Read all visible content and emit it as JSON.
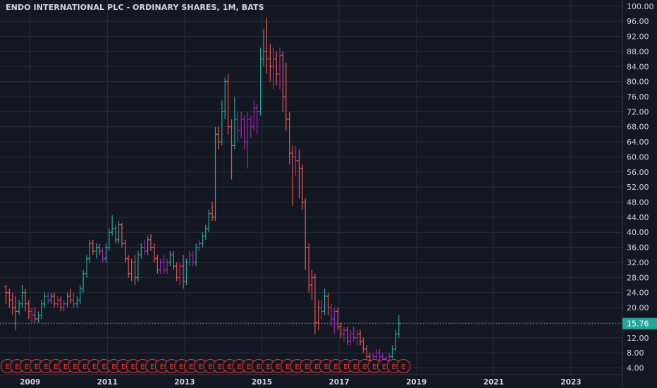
{
  "chart_data": {
    "type": "bar",
    "style": "ohlc",
    "title": "ENDO INTERNATIONAL PLC - ORDINARY SHARES, 1M, BATS",
    "xlabel": "",
    "ylabel": "",
    "y_ticks": [
      "100.00",
      "96.00",
      "92.00",
      "88.00",
      "84.00",
      "80.00",
      "76.00",
      "72.00",
      "68.00",
      "64.00",
      "60.00",
      "56.00",
      "52.00",
      "48.00",
      "44.00",
      "40.00",
      "36.00",
      "32.00",
      "28.00",
      "24.00",
      "20.00",
      "16.00",
      "12.00",
      "8.00",
      "4.00"
    ],
    "x_ticks": [
      "2009",
      "2011",
      "2013",
      "2015",
      "2017",
      "2019",
      "2021",
      "2023"
    ],
    "ylim": [
      2,
      101
    ],
    "xlim": [
      2008.5,
      2024.5
    ],
    "last_price": "15.76",
    "last_price_value": 15.76,
    "earnings_marker": "E",
    "grid": true,
    "colors": {
      "background": "#131722",
      "grid": "#2a2e39",
      "axis_text": "#d1d4dc",
      "up": "#26a69a",
      "down": "#ef5350",
      "purple": "#9c27b0",
      "price_line": "#26a69a",
      "earnings": "#e53935"
    },
    "bars": [
      {
        "t": 2008.54,
        "o": 25.5,
        "h": 26,
        "l": 21,
        "c": 24,
        "k": "d"
      },
      {
        "t": 2008.63,
        "o": 24,
        "h": 25,
        "l": 20,
        "c": 22,
        "k": "d"
      },
      {
        "t": 2008.71,
        "o": 22,
        "h": 24,
        "l": 18,
        "c": 20,
        "k": "d"
      },
      {
        "t": 2008.79,
        "o": 20,
        "h": 23,
        "l": 14,
        "c": 19,
        "k": "d"
      },
      {
        "t": 2008.88,
        "o": 19,
        "h": 22,
        "l": 18,
        "c": 21,
        "k": "u"
      },
      {
        "t": 2008.96,
        "o": 21,
        "h": 26,
        "l": 20,
        "c": 24,
        "k": "u"
      },
      {
        "t": 2009.04,
        "o": 24,
        "h": 25,
        "l": 19,
        "c": 21,
        "k": "d"
      },
      {
        "t": 2009.13,
        "o": 21,
        "h": 22,
        "l": 17,
        "c": 19,
        "k": "d"
      },
      {
        "t": 2009.21,
        "o": 19,
        "h": 20,
        "l": 16,
        "c": 18,
        "k": "p"
      },
      {
        "t": 2009.29,
        "o": 18,
        "h": 20,
        "l": 16,
        "c": 17,
        "k": "d"
      },
      {
        "t": 2009.38,
        "o": 17,
        "h": 19,
        "l": 16,
        "c": 18,
        "k": "u"
      },
      {
        "t": 2009.46,
        "o": 18,
        "h": 22,
        "l": 17,
        "c": 21,
        "k": "u"
      },
      {
        "t": 2009.54,
        "o": 21,
        "h": 24,
        "l": 20,
        "c": 23,
        "k": "u"
      },
      {
        "t": 2009.63,
        "o": 23,
        "h": 24,
        "l": 21,
        "c": 22,
        "k": "p"
      },
      {
        "t": 2009.71,
        "o": 22,
        "h": 24,
        "l": 21,
        "c": 23,
        "k": "u"
      },
      {
        "t": 2009.79,
        "o": 23,
        "h": 24,
        "l": 20,
        "c": 21,
        "k": "d"
      },
      {
        "t": 2009.88,
        "o": 21,
        "h": 23,
        "l": 20,
        "c": 22,
        "k": "p"
      },
      {
        "t": 2009.96,
        "o": 22,
        "h": 23,
        "l": 19,
        "c": 20,
        "k": "d"
      },
      {
        "t": 2010.04,
        "o": 20,
        "h": 22,
        "l": 19,
        "c": 21,
        "k": "p"
      },
      {
        "t": 2010.13,
        "o": 21,
        "h": 24,
        "l": 20,
        "c": 23,
        "k": "u"
      },
      {
        "t": 2010.21,
        "o": 23,
        "h": 25,
        "l": 21,
        "c": 22,
        "k": "d"
      },
      {
        "t": 2010.29,
        "o": 22,
        "h": 24,
        "l": 20,
        "c": 21,
        "k": "p"
      },
      {
        "t": 2010.38,
        "o": 21,
        "h": 23,
        "l": 20,
        "c": 22,
        "k": "u"
      },
      {
        "t": 2010.46,
        "o": 22,
        "h": 26,
        "l": 21,
        "c": 25,
        "k": "u"
      },
      {
        "t": 2010.54,
        "o": 25,
        "h": 30,
        "l": 24,
        "c": 29,
        "k": "u"
      },
      {
        "t": 2010.63,
        "o": 29,
        "h": 34,
        "l": 28,
        "c": 33,
        "k": "u"
      },
      {
        "t": 2010.71,
        "o": 33,
        "h": 38,
        "l": 32,
        "c": 37,
        "k": "u"
      },
      {
        "t": 2010.79,
        "o": 37,
        "h": 38,
        "l": 34,
        "c": 35,
        "k": "d"
      },
      {
        "t": 2010.88,
        "o": 35,
        "h": 37,
        "l": 33,
        "c": 36,
        "k": "u"
      },
      {
        "t": 2010.96,
        "o": 36,
        "h": 37,
        "l": 34,
        "c": 35,
        "k": "d"
      },
      {
        "t": 2011.04,
        "o": 35,
        "h": 36,
        "l": 32,
        "c": 33,
        "k": "p"
      },
      {
        "t": 2011.13,
        "o": 33,
        "h": 37,
        "l": 32,
        "c": 36,
        "k": "u"
      },
      {
        "t": 2011.21,
        "o": 36,
        "h": 41,
        "l": 35,
        "c": 40,
        "k": "u"
      },
      {
        "t": 2011.29,
        "o": 40,
        "h": 44.5,
        "l": 39,
        "c": 41,
        "k": "u"
      },
      {
        "t": 2011.38,
        "o": 41,
        "h": 42,
        "l": 37,
        "c": 38,
        "k": "d"
      },
      {
        "t": 2011.46,
        "o": 38,
        "h": 43,
        "l": 37,
        "c": 42,
        "k": "u"
      },
      {
        "t": 2011.54,
        "o": 42,
        "h": 42.5,
        "l": 36,
        "c": 37,
        "k": "d"
      },
      {
        "t": 2011.63,
        "o": 37,
        "h": 38,
        "l": 32,
        "c": 33,
        "k": "d"
      },
      {
        "t": 2011.71,
        "o": 33,
        "h": 34,
        "l": 28,
        "c": 29,
        "k": "d"
      },
      {
        "t": 2011.79,
        "o": 29,
        "h": 33,
        "l": 27,
        "c": 32,
        "k": "u"
      },
      {
        "t": 2011.88,
        "o": 32,
        "h": 34,
        "l": 26,
        "c": 28,
        "k": "d"
      },
      {
        "t": 2011.96,
        "o": 28,
        "h": 35,
        "l": 27,
        "c": 34,
        "k": "u"
      },
      {
        "t": 2012.04,
        "o": 34,
        "h": 37,
        "l": 33,
        "c": 36,
        "k": "u"
      },
      {
        "t": 2012.13,
        "o": 36,
        "h": 38,
        "l": 34,
        "c": 35,
        "k": "p"
      },
      {
        "t": 2012.21,
        "o": 35,
        "h": 39,
        "l": 34,
        "c": 38,
        "k": "u"
      },
      {
        "t": 2012.29,
        "o": 38,
        "h": 39.5,
        "l": 35,
        "c": 36,
        "k": "d"
      },
      {
        "t": 2012.38,
        "o": 36,
        "h": 37,
        "l": 32,
        "c": 33,
        "k": "d"
      },
      {
        "t": 2012.46,
        "o": 33,
        "h": 34,
        "l": 29,
        "c": 30,
        "k": "d"
      },
      {
        "t": 2012.54,
        "o": 30,
        "h": 33,
        "l": 29,
        "c": 32,
        "k": "p"
      },
      {
        "t": 2012.63,
        "o": 32,
        "h": 34,
        "l": 29,
        "c": 30,
        "k": "p"
      },
      {
        "t": 2012.71,
        "o": 30,
        "h": 33,
        "l": 29,
        "c": 32,
        "k": "p"
      },
      {
        "t": 2012.79,
        "o": 32,
        "h": 35,
        "l": 31,
        "c": 34,
        "k": "u"
      },
      {
        "t": 2012.88,
        "o": 34,
        "h": 35,
        "l": 30,
        "c": 31,
        "k": "d"
      },
      {
        "t": 2012.96,
        "o": 31,
        "h": 32,
        "l": 27,
        "c": 28,
        "k": "d"
      },
      {
        "t": 2013.04,
        "o": 28,
        "h": 32,
        "l": 26,
        "c": 31,
        "k": "p"
      },
      {
        "t": 2013.13,
        "o": 31,
        "h": 34,
        "l": 25,
        "c": 27,
        "k": "d"
      },
      {
        "t": 2013.21,
        "o": 27,
        "h": 33,
        "l": 26,
        "c": 32,
        "k": "u"
      },
      {
        "t": 2013.29,
        "o": 32,
        "h": 35,
        "l": 31,
        "c": 34,
        "k": "p"
      },
      {
        "t": 2013.38,
        "o": 34,
        "h": 35,
        "l": 31,
        "c": 32,
        "k": "p"
      },
      {
        "t": 2013.46,
        "o": 32,
        "h": 37,
        "l": 31,
        "c": 36,
        "k": "u"
      },
      {
        "t": 2013.54,
        "o": 36,
        "h": 38,
        "l": 35,
        "c": 37,
        "k": "p"
      },
      {
        "t": 2013.63,
        "o": 37,
        "h": 40,
        "l": 36,
        "c": 39,
        "k": "u"
      },
      {
        "t": 2013.71,
        "o": 39,
        "h": 42,
        "l": 38,
        "c": 41,
        "k": "u"
      },
      {
        "t": 2013.79,
        "o": 41,
        "h": 46,
        "l": 40,
        "c": 45,
        "k": "u"
      },
      {
        "t": 2013.88,
        "o": 45,
        "h": 48,
        "l": 43,
        "c": 44,
        "k": "d"
      },
      {
        "t": 2013.96,
        "o": 44,
        "h": 68,
        "l": 43,
        "c": 66,
        "k": "u"
      },
      {
        "t": 2014.04,
        "o": 66,
        "h": 68,
        "l": 62,
        "c": 64,
        "k": "d"
      },
      {
        "t": 2014.13,
        "o": 64,
        "h": 75,
        "l": 63,
        "c": 72,
        "k": "u"
      },
      {
        "t": 2014.21,
        "o": 72,
        "h": 81,
        "l": 70,
        "c": 80,
        "k": "u"
      },
      {
        "t": 2014.29,
        "o": 80,
        "h": 82,
        "l": 66,
        "c": 68,
        "k": "d"
      },
      {
        "t": 2014.38,
        "o": 68,
        "h": 70,
        "l": 54,
        "c": 63,
        "k": "d"
      },
      {
        "t": 2014.46,
        "o": 63,
        "h": 76,
        "l": 62,
        "c": 70,
        "k": "u"
      },
      {
        "t": 2014.54,
        "o": 70,
        "h": 72,
        "l": 64,
        "c": 67,
        "k": "p"
      },
      {
        "t": 2014.63,
        "o": 67,
        "h": 72,
        "l": 65,
        "c": 70,
        "k": "p"
      },
      {
        "t": 2014.71,
        "o": 70,
        "h": 71,
        "l": 62,
        "c": 64,
        "k": "p"
      },
      {
        "t": 2014.79,
        "o": 64,
        "h": 72,
        "l": 57,
        "c": 70,
        "k": "p"
      },
      {
        "t": 2014.88,
        "o": 70,
        "h": 71,
        "l": 65,
        "c": 68,
        "k": "p"
      },
      {
        "t": 2014.96,
        "o": 68,
        "h": 75,
        "l": 67,
        "c": 73,
        "k": "p"
      },
      {
        "t": 2015.04,
        "o": 73,
        "h": 74,
        "l": 66,
        "c": 72,
        "k": "p"
      },
      {
        "t": 2015.13,
        "o": 72,
        "h": 89,
        "l": 71,
        "c": 86,
        "k": "u"
      },
      {
        "t": 2015.21,
        "o": 86,
        "h": 94,
        "l": 84,
        "c": 88,
        "k": "u"
      },
      {
        "t": 2015.29,
        "o": 88,
        "h": 97,
        "l": 82,
        "c": 86,
        "k": "d"
      },
      {
        "t": 2015.38,
        "o": 86,
        "h": 90,
        "l": 80,
        "c": 84,
        "k": "d"
      },
      {
        "t": 2015.46,
        "o": 84,
        "h": 89,
        "l": 78,
        "c": 86,
        "k": "p"
      },
      {
        "t": 2015.54,
        "o": 86,
        "h": 88,
        "l": 79,
        "c": 82,
        "k": "d"
      },
      {
        "t": 2015.63,
        "o": 82,
        "h": 89,
        "l": 78,
        "c": 87,
        "k": "p"
      },
      {
        "t": 2015.71,
        "o": 87,
        "h": 88,
        "l": 72,
        "c": 76,
        "k": "d"
      },
      {
        "t": 2015.79,
        "o": 76,
        "h": 85,
        "l": 67,
        "c": 70,
        "k": "d"
      },
      {
        "t": 2015.88,
        "o": 70,
        "h": 72,
        "l": 58,
        "c": 61,
        "k": "d"
      },
      {
        "t": 2015.96,
        "o": 61,
        "h": 63,
        "l": 47,
        "c": 60,
        "k": "d"
      },
      {
        "t": 2016.04,
        "o": 60,
        "h": 63,
        "l": 55,
        "c": 59,
        "k": "p"
      },
      {
        "t": 2016.13,
        "o": 59,
        "h": 62,
        "l": 49,
        "c": 57,
        "k": "d"
      },
      {
        "t": 2016.21,
        "o": 57,
        "h": 58,
        "l": 46,
        "c": 48,
        "k": "d"
      },
      {
        "t": 2016.29,
        "o": 48,
        "h": 49,
        "l": 30,
        "c": 36,
        "k": "d"
      },
      {
        "t": 2016.38,
        "o": 36,
        "h": 37,
        "l": 24,
        "c": 26,
        "k": "d"
      },
      {
        "t": 2016.46,
        "o": 26,
        "h": 30,
        "l": 22,
        "c": 28,
        "k": "d"
      },
      {
        "t": 2016.54,
        "o": 28,
        "h": 29,
        "l": 13,
        "c": 16,
        "k": "d"
      },
      {
        "t": 2016.63,
        "o": 16,
        "h": 22,
        "l": 14,
        "c": 20,
        "k": "d"
      },
      {
        "t": 2016.71,
        "o": 20,
        "h": 22,
        "l": 17,
        "c": 19,
        "k": "p"
      },
      {
        "t": 2016.79,
        "o": 19,
        "h": 25,
        "l": 18,
        "c": 23,
        "k": "u"
      },
      {
        "t": 2016.88,
        "o": 23,
        "h": 24,
        "l": 18,
        "c": 20,
        "k": "d"
      },
      {
        "t": 2016.96,
        "o": 20,
        "h": 21,
        "l": 15,
        "c": 17,
        "k": "p"
      },
      {
        "t": 2017.04,
        "o": 17,
        "h": 20,
        "l": 13,
        "c": 19,
        "k": "p"
      },
      {
        "t": 2017.13,
        "o": 19,
        "h": 20,
        "l": 14,
        "c": 15,
        "k": "d"
      },
      {
        "t": 2017.21,
        "o": 15,
        "h": 16,
        "l": 12,
        "c": 13,
        "k": "d"
      },
      {
        "t": 2017.29,
        "o": 13,
        "h": 15,
        "l": 11,
        "c": 14,
        "k": "p"
      },
      {
        "t": 2017.38,
        "o": 14,
        "h": 15,
        "l": 10,
        "c": 11,
        "k": "d"
      },
      {
        "t": 2017.46,
        "o": 11,
        "h": 14,
        "l": 10,
        "c": 13,
        "k": "p"
      },
      {
        "t": 2017.54,
        "o": 13,
        "h": 15,
        "l": 11,
        "c": 12,
        "k": "p"
      },
      {
        "t": 2017.63,
        "o": 12,
        "h": 14,
        "l": 10,
        "c": 13,
        "k": "p"
      },
      {
        "t": 2017.71,
        "o": 13,
        "h": 14,
        "l": 10,
        "c": 11,
        "k": "d"
      },
      {
        "t": 2017.79,
        "o": 11,
        "h": 12,
        "l": 8,
        "c": 9,
        "k": "d"
      },
      {
        "t": 2017.88,
        "o": 9,
        "h": 10,
        "l": 6,
        "c": 7,
        "k": "d"
      },
      {
        "t": 2017.96,
        "o": 7,
        "h": 8,
        "l": 5,
        "c": 6,
        "k": "d"
      },
      {
        "t": 2018.04,
        "o": 6,
        "h": 8,
        "l": 5,
        "c": 7,
        "k": "p"
      },
      {
        "t": 2018.13,
        "o": 7,
        "h": 9,
        "l": 6,
        "c": 8,
        "k": "p"
      },
      {
        "t": 2018.21,
        "o": 8,
        "h": 9,
        "l": 6,
        "c": 7,
        "k": "p"
      },
      {
        "t": 2018.29,
        "o": 7,
        "h": 8,
        "l": 6,
        "c": 6.5,
        "k": "p"
      },
      {
        "t": 2018.38,
        "o": 6.5,
        "h": 7,
        "l": 5,
        "c": 6,
        "k": "p"
      },
      {
        "t": 2018.46,
        "o": 6,
        "h": 8,
        "l": 5.5,
        "c": 7,
        "k": "p"
      },
      {
        "t": 2018.54,
        "o": 7,
        "h": 10,
        "l": 6.5,
        "c": 9,
        "k": "u"
      },
      {
        "t": 2018.63,
        "o": 9,
        "h": 14,
        "l": 8.5,
        "c": 13,
        "k": "u"
      },
      {
        "t": 2018.71,
        "o": 13,
        "h": 18,
        "l": 12,
        "c": 15.76,
        "k": "u"
      }
    ],
    "earnings_t": [
      2008.58,
      2008.83,
      2009.08,
      2009.33,
      2009.58,
      2009.83,
      2010.08,
      2010.33,
      2010.58,
      2010.83,
      2011.08,
      2011.33,
      2011.58,
      2011.83,
      2012.08,
      2012.33,
      2012.58,
      2012.83,
      2013.08,
      2013.33,
      2013.58,
      2013.83,
      2014.08,
      2014.33,
      2014.58,
      2014.83,
      2015.08,
      2015.33,
      2015.58,
      2015.83,
      2016.08,
      2016.33,
      2016.58,
      2016.83,
      2017.08,
      2017.33,
      2017.58,
      2017.83,
      2018.08,
      2018.33,
      2018.58,
      2018.83
    ]
  }
}
